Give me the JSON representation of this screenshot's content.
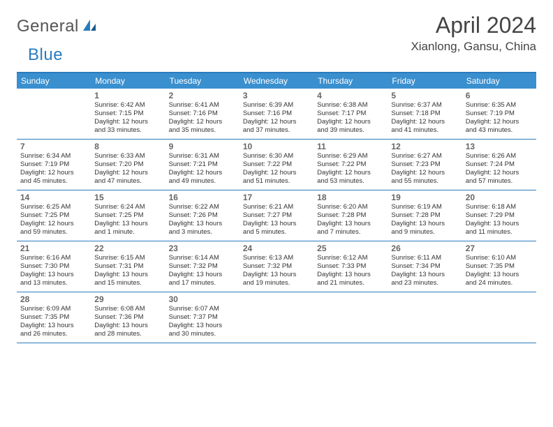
{
  "logo": {
    "general": "General",
    "blue": "Blue"
  },
  "title": "April 2024",
  "location": "Xianlong, Gansu, China",
  "colors": {
    "header_bg": "#3a8fce",
    "header_text": "#ffffff",
    "border": "#2a7bbd",
    "daynum": "#666666",
    "body_text": "#333333",
    "logo_gray": "#555555",
    "logo_blue": "#2a7bbd"
  },
  "daynames": [
    "Sunday",
    "Monday",
    "Tuesday",
    "Wednesday",
    "Thursday",
    "Friday",
    "Saturday"
  ],
  "weeks": [
    [
      null,
      {
        "n": "1",
        "sr": "Sunrise: 6:42 AM",
        "ss": "Sunset: 7:15 PM",
        "d1": "Daylight: 12 hours",
        "d2": "and 33 minutes."
      },
      {
        "n": "2",
        "sr": "Sunrise: 6:41 AM",
        "ss": "Sunset: 7:16 PM",
        "d1": "Daylight: 12 hours",
        "d2": "and 35 minutes."
      },
      {
        "n": "3",
        "sr": "Sunrise: 6:39 AM",
        "ss": "Sunset: 7:16 PM",
        "d1": "Daylight: 12 hours",
        "d2": "and 37 minutes."
      },
      {
        "n": "4",
        "sr": "Sunrise: 6:38 AM",
        "ss": "Sunset: 7:17 PM",
        "d1": "Daylight: 12 hours",
        "d2": "and 39 minutes."
      },
      {
        "n": "5",
        "sr": "Sunrise: 6:37 AM",
        "ss": "Sunset: 7:18 PM",
        "d1": "Daylight: 12 hours",
        "d2": "and 41 minutes."
      },
      {
        "n": "6",
        "sr": "Sunrise: 6:35 AM",
        "ss": "Sunset: 7:19 PM",
        "d1": "Daylight: 12 hours",
        "d2": "and 43 minutes."
      }
    ],
    [
      {
        "n": "7",
        "sr": "Sunrise: 6:34 AM",
        "ss": "Sunset: 7:19 PM",
        "d1": "Daylight: 12 hours",
        "d2": "and 45 minutes."
      },
      {
        "n": "8",
        "sr": "Sunrise: 6:33 AM",
        "ss": "Sunset: 7:20 PM",
        "d1": "Daylight: 12 hours",
        "d2": "and 47 minutes."
      },
      {
        "n": "9",
        "sr": "Sunrise: 6:31 AM",
        "ss": "Sunset: 7:21 PM",
        "d1": "Daylight: 12 hours",
        "d2": "and 49 minutes."
      },
      {
        "n": "10",
        "sr": "Sunrise: 6:30 AM",
        "ss": "Sunset: 7:22 PM",
        "d1": "Daylight: 12 hours",
        "d2": "and 51 minutes."
      },
      {
        "n": "11",
        "sr": "Sunrise: 6:29 AM",
        "ss": "Sunset: 7:22 PM",
        "d1": "Daylight: 12 hours",
        "d2": "and 53 minutes."
      },
      {
        "n": "12",
        "sr": "Sunrise: 6:27 AM",
        "ss": "Sunset: 7:23 PM",
        "d1": "Daylight: 12 hours",
        "d2": "and 55 minutes."
      },
      {
        "n": "13",
        "sr": "Sunrise: 6:26 AM",
        "ss": "Sunset: 7:24 PM",
        "d1": "Daylight: 12 hours",
        "d2": "and 57 minutes."
      }
    ],
    [
      {
        "n": "14",
        "sr": "Sunrise: 6:25 AM",
        "ss": "Sunset: 7:25 PM",
        "d1": "Daylight: 12 hours",
        "d2": "and 59 minutes."
      },
      {
        "n": "15",
        "sr": "Sunrise: 6:24 AM",
        "ss": "Sunset: 7:25 PM",
        "d1": "Daylight: 13 hours",
        "d2": "and 1 minute."
      },
      {
        "n": "16",
        "sr": "Sunrise: 6:22 AM",
        "ss": "Sunset: 7:26 PM",
        "d1": "Daylight: 13 hours",
        "d2": "and 3 minutes."
      },
      {
        "n": "17",
        "sr": "Sunrise: 6:21 AM",
        "ss": "Sunset: 7:27 PM",
        "d1": "Daylight: 13 hours",
        "d2": "and 5 minutes."
      },
      {
        "n": "18",
        "sr": "Sunrise: 6:20 AM",
        "ss": "Sunset: 7:28 PM",
        "d1": "Daylight: 13 hours",
        "d2": "and 7 minutes."
      },
      {
        "n": "19",
        "sr": "Sunrise: 6:19 AM",
        "ss": "Sunset: 7:28 PM",
        "d1": "Daylight: 13 hours",
        "d2": "and 9 minutes."
      },
      {
        "n": "20",
        "sr": "Sunrise: 6:18 AM",
        "ss": "Sunset: 7:29 PM",
        "d1": "Daylight: 13 hours",
        "d2": "and 11 minutes."
      }
    ],
    [
      {
        "n": "21",
        "sr": "Sunrise: 6:16 AM",
        "ss": "Sunset: 7:30 PM",
        "d1": "Daylight: 13 hours",
        "d2": "and 13 minutes."
      },
      {
        "n": "22",
        "sr": "Sunrise: 6:15 AM",
        "ss": "Sunset: 7:31 PM",
        "d1": "Daylight: 13 hours",
        "d2": "and 15 minutes."
      },
      {
        "n": "23",
        "sr": "Sunrise: 6:14 AM",
        "ss": "Sunset: 7:32 PM",
        "d1": "Daylight: 13 hours",
        "d2": "and 17 minutes."
      },
      {
        "n": "24",
        "sr": "Sunrise: 6:13 AM",
        "ss": "Sunset: 7:32 PM",
        "d1": "Daylight: 13 hours",
        "d2": "and 19 minutes."
      },
      {
        "n": "25",
        "sr": "Sunrise: 6:12 AM",
        "ss": "Sunset: 7:33 PM",
        "d1": "Daylight: 13 hours",
        "d2": "and 21 minutes."
      },
      {
        "n": "26",
        "sr": "Sunrise: 6:11 AM",
        "ss": "Sunset: 7:34 PM",
        "d1": "Daylight: 13 hours",
        "d2": "and 23 minutes."
      },
      {
        "n": "27",
        "sr": "Sunrise: 6:10 AM",
        "ss": "Sunset: 7:35 PM",
        "d1": "Daylight: 13 hours",
        "d2": "and 24 minutes."
      }
    ],
    [
      {
        "n": "28",
        "sr": "Sunrise: 6:09 AM",
        "ss": "Sunset: 7:35 PM",
        "d1": "Daylight: 13 hours",
        "d2": "and 26 minutes."
      },
      {
        "n": "29",
        "sr": "Sunrise: 6:08 AM",
        "ss": "Sunset: 7:36 PM",
        "d1": "Daylight: 13 hours",
        "d2": "and 28 minutes."
      },
      {
        "n": "30",
        "sr": "Sunrise: 6:07 AM",
        "ss": "Sunset: 7:37 PM",
        "d1": "Daylight: 13 hours",
        "d2": "and 30 minutes."
      },
      null,
      null,
      null,
      null
    ]
  ]
}
